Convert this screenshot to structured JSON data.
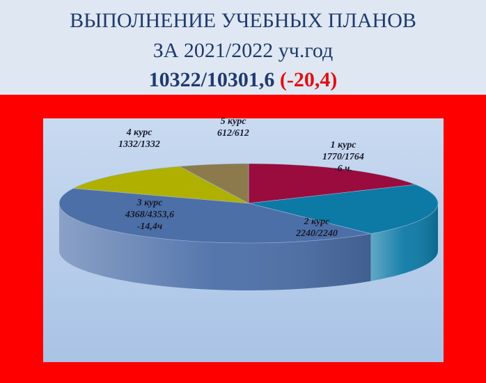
{
  "header": {
    "line1": "ВЫПОЛНЕНИЕ УЧЕБНЫХ ПЛАНОВ",
    "line2": "ЗА  2021/2022 уч.год",
    "total": "10322/10301,6",
    "difference": "(-20,4)"
  },
  "chart_data": {
    "type": "pie",
    "categories": [
      "1 курс",
      "2 курс",
      "3 курс",
      "4 курс",
      "5 курс"
    ],
    "values": [
      1770,
      2240,
      4368,
      1332,
      612
    ],
    "value_labels": [
      "1770/1764",
      "2240/2240",
      "4368/4353,6",
      "1332/1332",
      "612/612"
    ],
    "differences": [
      "-6 ч.",
      null,
      "-14,4ч",
      null,
      null
    ],
    "colors": [
      "#9a0c3e",
      "#0d7aa6",
      "#4c6fa8",
      "#b0b000",
      "#8c7a4c"
    ]
  }
}
